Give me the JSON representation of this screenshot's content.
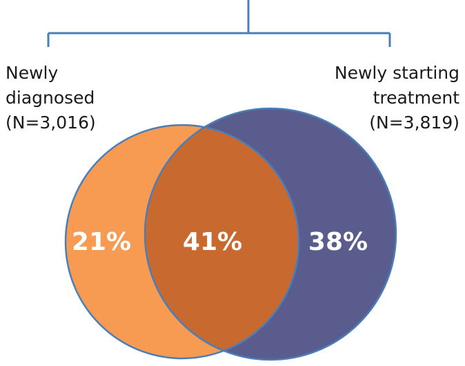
{
  "left_set": {
    "lines": [
      "Newly",
      "diagnosed",
      "(N=3,016)"
    ],
    "color": "#f79a52"
  },
  "right_set": {
    "lines": [
      "Newly starting",
      "treatment",
      "(N=3,819)"
    ],
    "color": "#5a5c8e"
  },
  "overlap": {
    "color": "#c86a30"
  },
  "regions": {
    "left_only": "21%",
    "overlap": "41%",
    "right_only": "38%"
  },
  "outline_color": "#4a7ebb"
}
